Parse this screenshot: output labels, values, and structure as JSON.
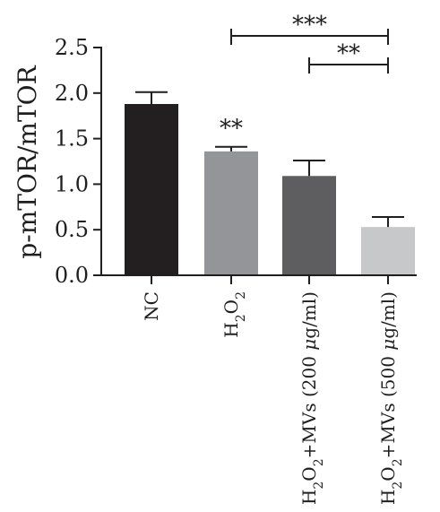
{
  "chart_data": {
    "type": "bar",
    "ylabel": "p-mTOR/mTOR",
    "ylim": [
      0,
      2.5
    ],
    "yticks": [
      "0.0",
      "0.5",
      "1.0",
      "1.5",
      "2.0",
      "2.5"
    ],
    "grid": false,
    "categories": [
      {
        "base": "NC",
        "parts": [
          {
            "t": "NC"
          }
        ]
      },
      {
        "base": "H2O2",
        "parts": [
          {
            "t": "H"
          },
          {
            "t": "2",
            "sub": true
          },
          {
            "t": "O"
          },
          {
            "t": "2",
            "sub": true
          }
        ]
      },
      {
        "base": "H2O2+MVs (200 μg/ml)",
        "parts": [
          {
            "t": "H"
          },
          {
            "t": "2",
            "sub": true
          },
          {
            "t": "O"
          },
          {
            "t": "2",
            "sub": true
          },
          {
            "t": "+MVs (200 "
          },
          {
            "t": "μ",
            "italic": true
          },
          {
            "t": "g/ml)"
          }
        ]
      },
      {
        "base": "H2O2+MVs (500 μg/ml)",
        "parts": [
          {
            "t": "H"
          },
          {
            "t": "2",
            "sub": true
          },
          {
            "t": "O"
          },
          {
            "t": "2",
            "sub": true
          },
          {
            "t": "+MVs (500 "
          },
          {
            "t": "μ",
            "italic": true
          },
          {
            "t": "g/ml)"
          }
        ]
      }
    ],
    "values": [
      1.88,
      1.36,
      1.09,
      0.53
    ],
    "errors": [
      0.13,
      0.05,
      0.17,
      0.11
    ],
    "colors": [
      "#231f20",
      "#939598",
      "#5e5e60",
      "#c7c8ca"
    ],
    "annotations": [
      {
        "text": "**",
        "bar": 1
      },
      {
        "text": "***",
        "from": 1,
        "to": 3
      },
      {
        "text": "**",
        "from": 2,
        "to": 3
      }
    ]
  }
}
